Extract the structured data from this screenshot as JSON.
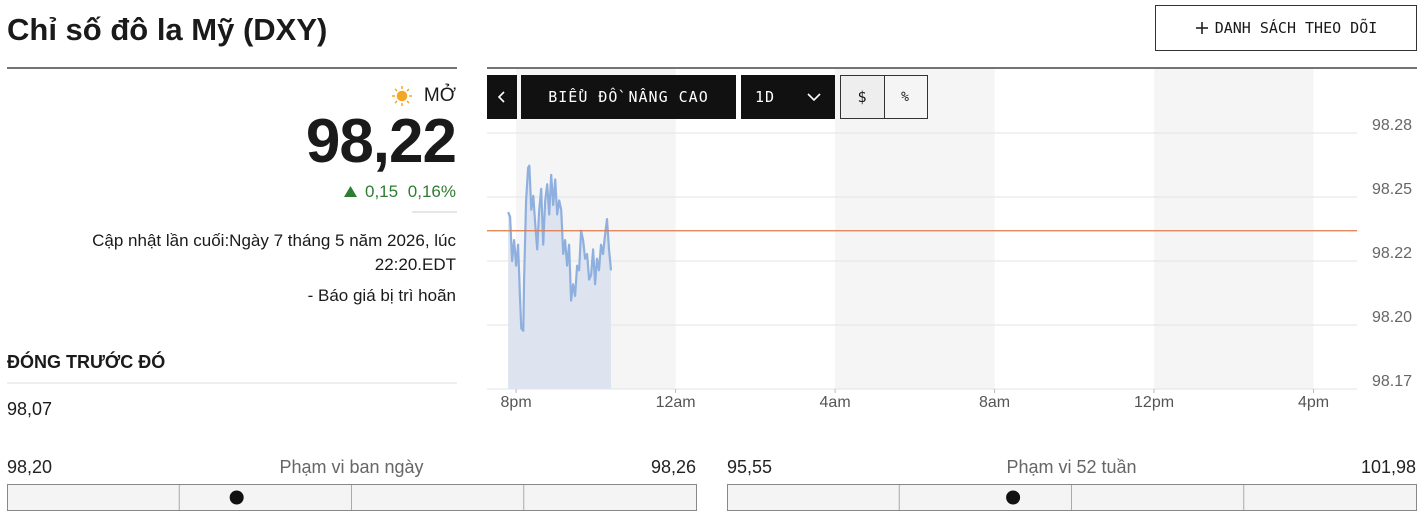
{
  "header": {
    "title": "Chỉ số đô la Mỹ (DXY)",
    "watchlist_button": "DANH SÁCH THEO DÕI"
  },
  "quote": {
    "status": "MỞ",
    "price": {
      "value": 98.22,
      "label": "98,22"
    },
    "change": "0,15",
    "change_percent": "0,16%",
    "last_updated": "Cập nhật lần cuối:Ngày 7 tháng 5 năm 2026, lúc 22:20.EDT",
    "delay_note": "- Báo giá bị trì hoãn",
    "previous_close_label": "ĐÓNG TRƯỚC ĐÓ",
    "previous_close": "98,07"
  },
  "ranges": [
    {
      "label": "Phạm vi ban ngày",
      "low": {
        "value": 98.2,
        "label": "98,20"
      },
      "high": {
        "value": 98.26,
        "label": "98,26"
      }
    },
    {
      "label": "Phạm vi 52 tuần",
      "low": {
        "value": 95.55,
        "label": "95,55"
      },
      "high": {
        "value": 101.98,
        "label": "101,98"
      }
    }
  ],
  "toolbar": {
    "advanced_chart": "BIỂU ĐỒ NÂNG CAO",
    "interval": "1D",
    "currency": "$",
    "percent": "%"
  },
  "chart_data": {
    "type": "line",
    "color": "#8fb0df",
    "fill": "#dde4ef",
    "grid": true,
    "reference_line": 98.238,
    "reference_color": "#e07a4a",
    "x": [
      19.8,
      19.85,
      19.9,
      19.95,
      20.0,
      20.05,
      20.1,
      20.13,
      20.18,
      20.2,
      20.25,
      20.3,
      20.33,
      20.38,
      20.43,
      20.48,
      20.53,
      20.58,
      20.63,
      20.68,
      20.73,
      20.78,
      20.83,
      20.88,
      20.93,
      20.98,
      21.03,
      21.08,
      21.13,
      21.18,
      21.23,
      21.28,
      21.33,
      21.38,
      21.43,
      21.48,
      21.53,
      21.58,
      21.63,
      21.68,
      21.73,
      21.78,
      21.83,
      21.88,
      21.93,
      21.98,
      22.03,
      22.08,
      22.13,
      22.18,
      22.23,
      22.28,
      22.33,
      22.38
    ],
    "values": [
      98.246,
      98.244,
      98.225,
      98.234,
      98.223,
      98.232,
      98.208,
      98.196,
      98.195,
      98.217,
      98.251,
      98.265,
      98.266,
      98.247,
      98.253,
      98.241,
      98.23,
      98.247,
      98.256,
      98.232,
      98.251,
      98.258,
      98.245,
      98.262,
      98.249,
      98.26,
      98.245,
      98.251,
      98.247,
      98.228,
      98.234,
      98.223,
      98.232,
      98.208,
      98.215,
      98.21,
      98.223,
      98.221,
      98.238,
      98.234,
      98.226,
      98.228,
      98.217,
      98.219,
      98.23,
      98.215,
      98.226,
      98.221,
      98.232,
      98.228,
      98.236,
      98.243,
      98.23,
      98.221
    ],
    "xlim": [
      19.27,
      41.09
    ],
    "xticks": [
      {
        "value": 20,
        "label": "8pm"
      },
      {
        "value": 24,
        "label": "12am"
      },
      {
        "value": 28,
        "label": "4am"
      },
      {
        "value": 32,
        "label": "8am"
      },
      {
        "value": 36,
        "label": "12pm"
      },
      {
        "value": 40,
        "label": "4pm"
      }
    ],
    "ylim": [
      98.17,
      98.28
    ],
    "yticks": [
      {
        "value": 98.28,
        "label": "98.28"
      },
      {
        "value": 98.2525,
        "label": "98.25"
      },
      {
        "value": 98.225,
        "label": "98.22"
      },
      {
        "value": 98.1975,
        "label": "98.20"
      },
      {
        "value": 98.17,
        "label": "98.17"
      }
    ]
  }
}
